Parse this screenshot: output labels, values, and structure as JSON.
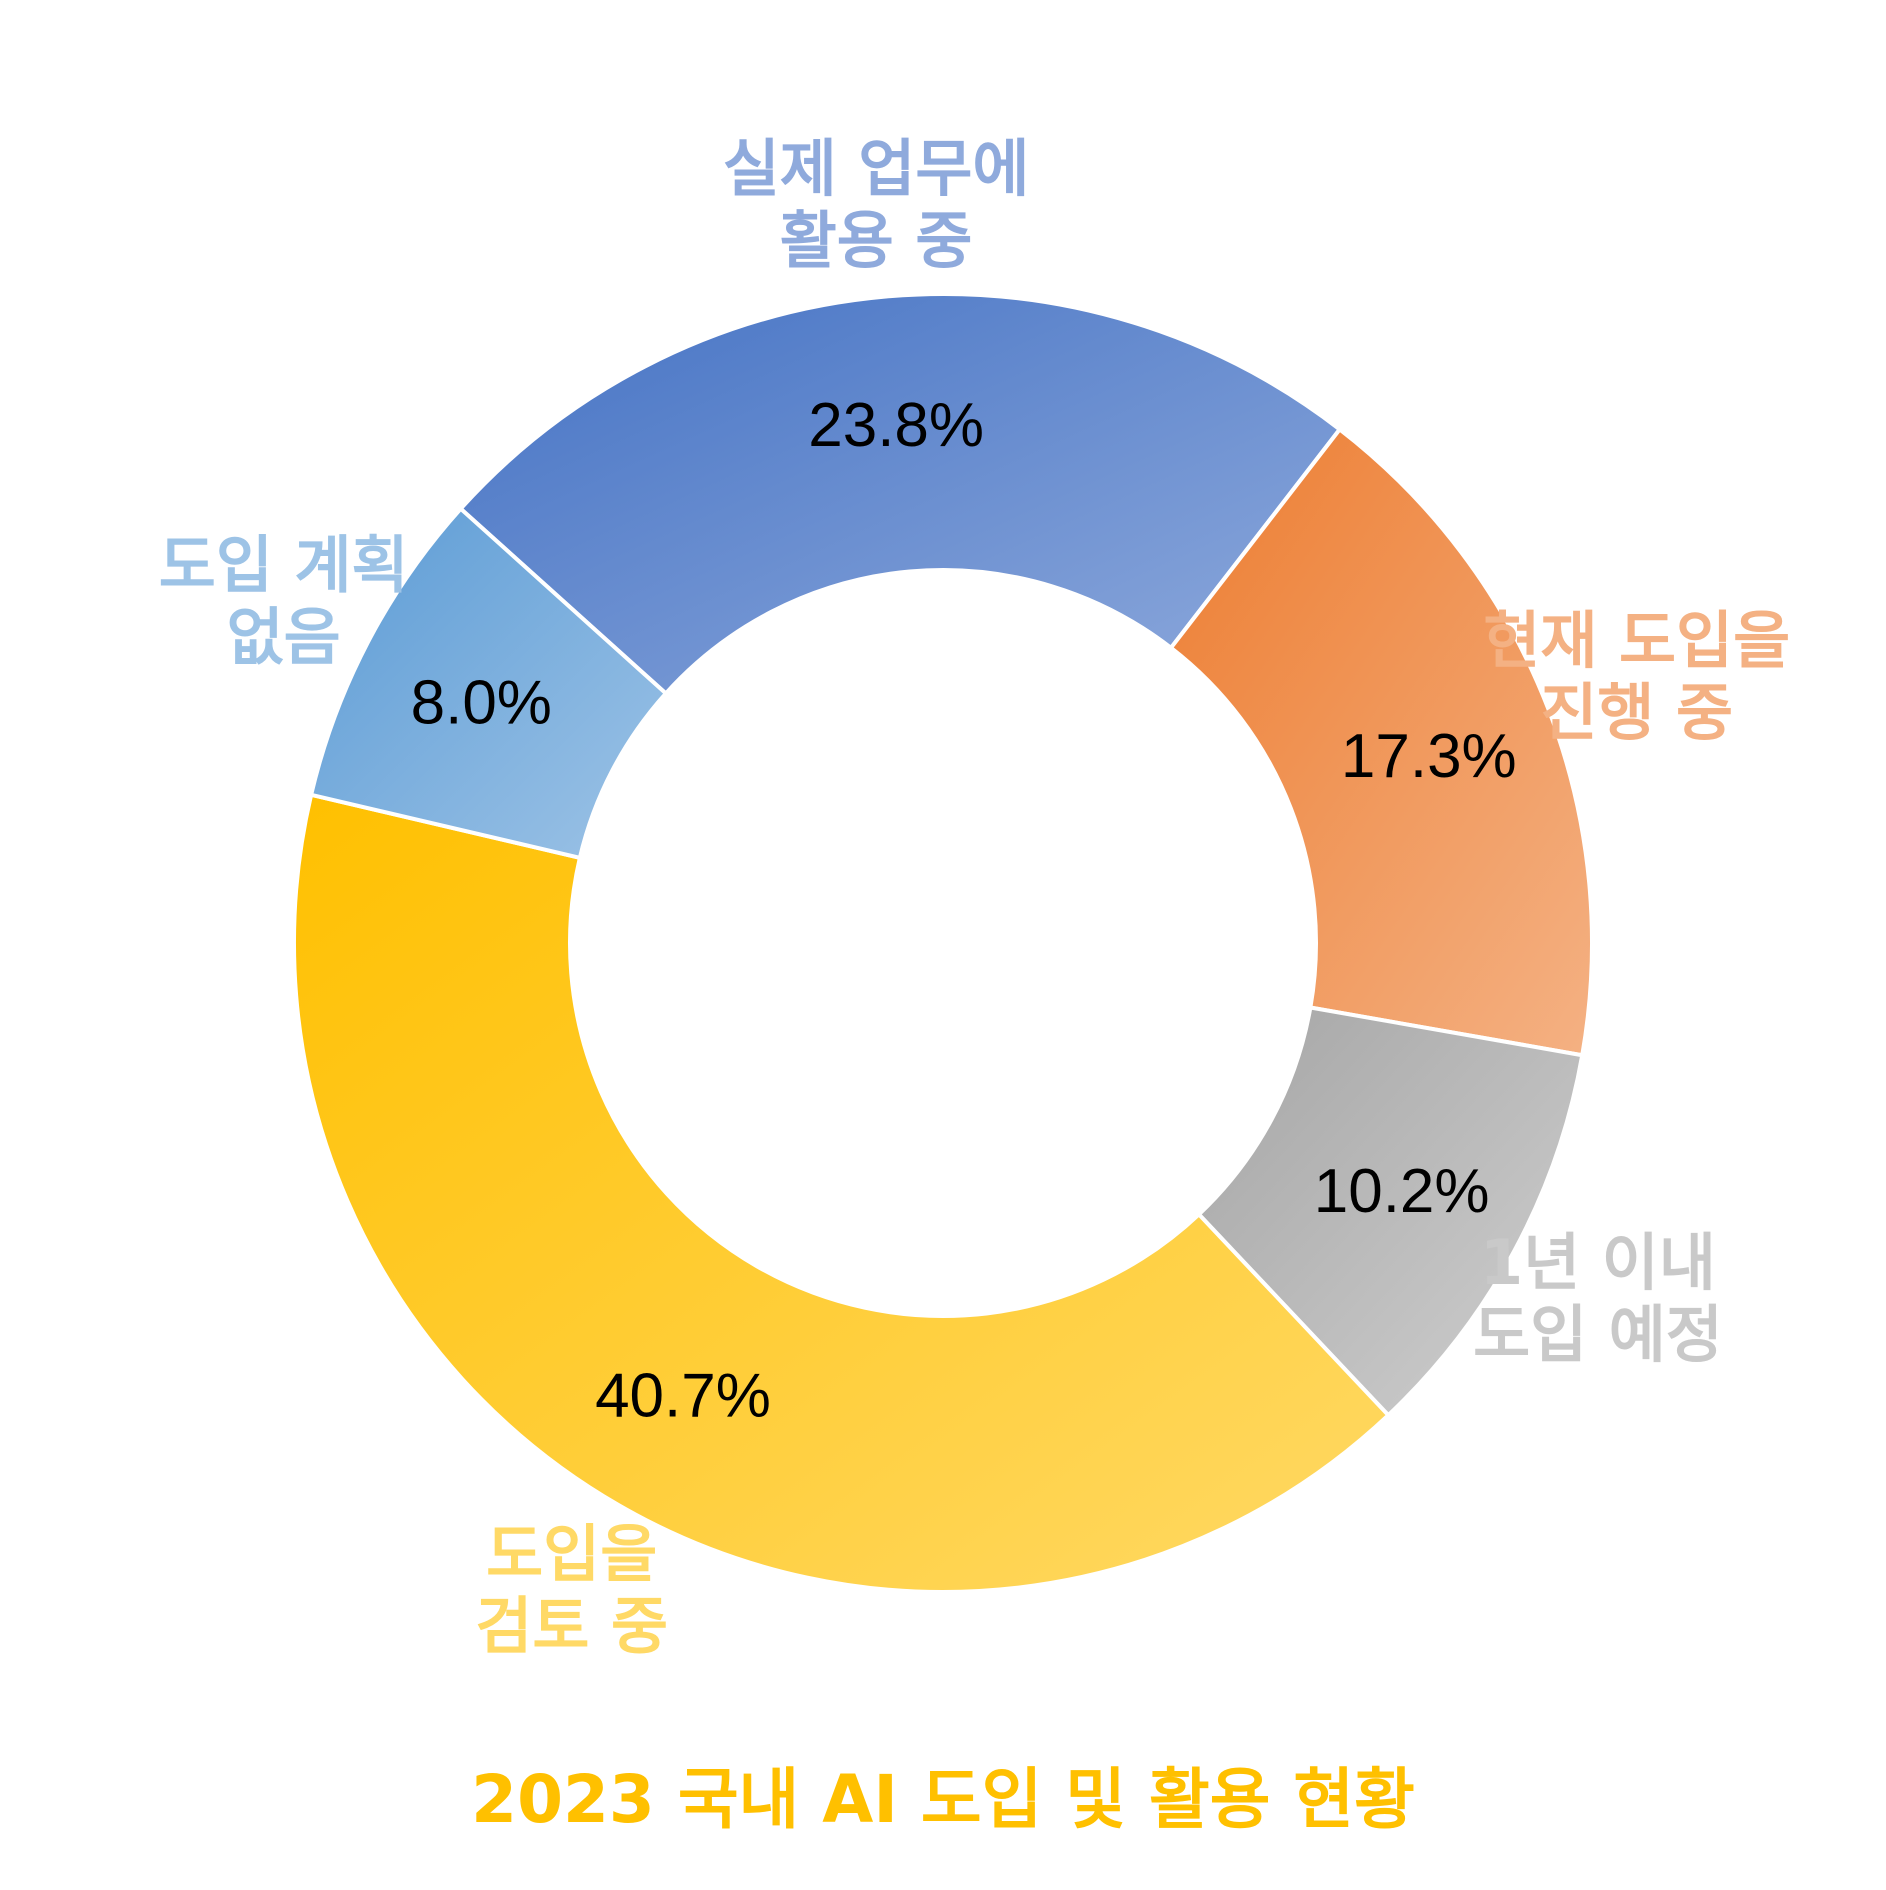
{
  "chart_data": {
    "type": "pie",
    "donut": true,
    "title": "2023 국내 AI 도입 및 활용 현황",
    "title_color": "#FFC000",
    "legend": "none",
    "slices": [
      {
        "label_lines": [
          "실제 업무에",
          "활용 중"
        ],
        "value": 23.8,
        "value_label": "23.8%",
        "color_dark": "#4472C4",
        "color_light": "#8FAADC",
        "label_color": "#8FAADC"
      },
      {
        "label_lines": [
          "현재 도입을",
          "진행 중"
        ],
        "value": 17.3,
        "value_label": "17.3%",
        "color_dark": "#ED7D31",
        "color_light": "#F4B183",
        "label_color": "#F4B183"
      },
      {
        "label_lines": [
          "1년 이내",
          "도입 예정"
        ],
        "value": 10.2,
        "value_label": "10.2%",
        "color_dark": "#A5A5A5",
        "color_light": "#D0D0D0",
        "label_color": "#C9C9C9"
      },
      {
        "label_lines": [
          "도입을",
          "검토 중"
        ],
        "value": 40.7,
        "value_label": "40.7%",
        "color_dark": "#FFC000",
        "color_light": "#FFD966",
        "label_color": "#FFD966"
      },
      {
        "label_lines": [
          "도입 계획",
          "없음"
        ],
        "value": 8.0,
        "value_label": "8.0%",
        "color_dark": "#5B9BD5",
        "color_light": "#9DC3E6",
        "label_color": "#9DC3E6"
      }
    ]
  }
}
